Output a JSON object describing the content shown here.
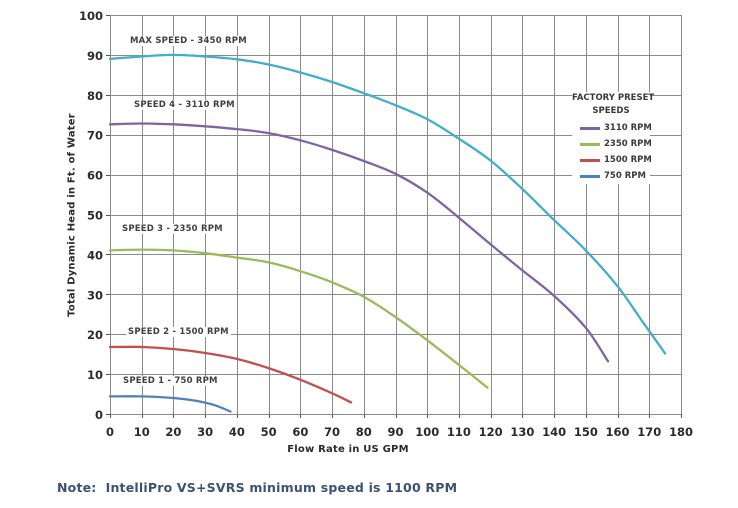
{
  "chart_data": {
    "type": "line",
    "title": "",
    "xlabel": "Flow Rate in US GPM",
    "ylabel": "Total Dynamic Head in Ft. of Water",
    "xlim": [
      0,
      180
    ],
    "ylim": [
      0,
      100
    ],
    "x_ticks": [
      0,
      10,
      20,
      30,
      40,
      50,
      60,
      70,
      80,
      90,
      100,
      110,
      120,
      130,
      140,
      150,
      160,
      170,
      180
    ],
    "y_ticks": [
      0,
      10,
      20,
      30,
      40,
      50,
      60,
      70,
      80,
      90,
      100
    ],
    "grid": true,
    "grid_color": "#8a8a8a",
    "legend_position": "inside-upper-right",
    "series": [
      {
        "annotation": "MAX SPEED - 3450 RPM",
        "rpm": 3450,
        "color": "#41AECB",
        "points": [
          [
            0,
            89
          ],
          [
            10,
            89.6
          ],
          [
            20,
            90
          ],
          [
            30,
            89.6
          ],
          [
            40,
            88.9
          ],
          [
            50,
            87.6
          ],
          [
            60,
            85.6
          ],
          [
            70,
            83.2
          ],
          [
            80,
            80.4
          ],
          [
            90,
            77.4
          ],
          [
            100,
            73.9
          ],
          [
            110,
            69
          ],
          [
            120,
            63.5
          ],
          [
            130,
            56.4
          ],
          [
            140,
            48.6
          ],
          [
            150,
            41
          ],
          [
            160,
            32
          ],
          [
            168,
            23
          ],
          [
            175,
            15.2
          ]
        ]
      },
      {
        "annotation": "SPEED 4 - 3110 RPM",
        "rpm": 3110,
        "color": "#8064A2",
        "points": [
          [
            0,
            72.6
          ],
          [
            10,
            72.8
          ],
          [
            20,
            72.6
          ],
          [
            30,
            72.1
          ],
          [
            40,
            71.4
          ],
          [
            50,
            70.4
          ],
          [
            60,
            68.6
          ],
          [
            70,
            66.2
          ],
          [
            80,
            63.4
          ],
          [
            90,
            60.2
          ],
          [
            100,
            55.5
          ],
          [
            110,
            49.2
          ],
          [
            120,
            42.5
          ],
          [
            130,
            36
          ],
          [
            140,
            29.6
          ],
          [
            150,
            21.6
          ],
          [
            157,
            13.2
          ]
        ]
      },
      {
        "annotation": "SPEED 3 - 2350 RPM",
        "rpm": 2350,
        "color": "#9BBB59",
        "points": [
          [
            0,
            41
          ],
          [
            10,
            41.2
          ],
          [
            20,
            41
          ],
          [
            30,
            40.3
          ],
          [
            40,
            39.2
          ],
          [
            50,
            38
          ],
          [
            60,
            35.8
          ],
          [
            70,
            33
          ],
          [
            80,
            29.4
          ],
          [
            90,
            24.3
          ],
          [
            100,
            18.5
          ],
          [
            110,
            12.3
          ],
          [
            119,
            6.6
          ]
        ]
      },
      {
        "annotation": "SPEED 2 - 1500 RPM",
        "rpm": 1500,
        "color": "#C0504D",
        "points": [
          [
            0,
            16.8
          ],
          [
            10,
            16.8
          ],
          [
            20,
            16.3
          ],
          [
            30,
            15.3
          ],
          [
            40,
            13.8
          ],
          [
            50,
            11.5
          ],
          [
            60,
            8.6
          ],
          [
            70,
            5.2
          ],
          [
            76,
            2.9
          ]
        ]
      },
      {
        "annotation": "SPEED 1 - 750 RPM",
        "rpm": 750,
        "color": "#4F81BD",
        "points": [
          [
            0,
            4.4
          ],
          [
            10,
            4.4
          ],
          [
            20,
            4
          ],
          [
            27,
            3.3
          ],
          [
            33,
            2.2
          ],
          [
            38,
            0.6
          ]
        ]
      }
    ]
  },
  "legend": {
    "title_line1": "FACTORY PRESET",
    "title_line2": "SPEEDS",
    "items": [
      {
        "label": "3110 RPM",
        "color": "#8064A2"
      },
      {
        "label": "2350 RPM",
        "color": "#9BBB59"
      },
      {
        "label": "1500 RPM",
        "color": "#C0504D"
      },
      {
        "label": "750 RPM",
        "color": "#4F81BD"
      }
    ]
  },
  "note": "Note:  IntelliPro VS+SVRS minimum speed is 1100 RPM",
  "colors": {
    "text": "#2b2b2b",
    "note_text": "#3b5274",
    "grid": "#8a8a8a",
    "background": "#ffffff"
  }
}
